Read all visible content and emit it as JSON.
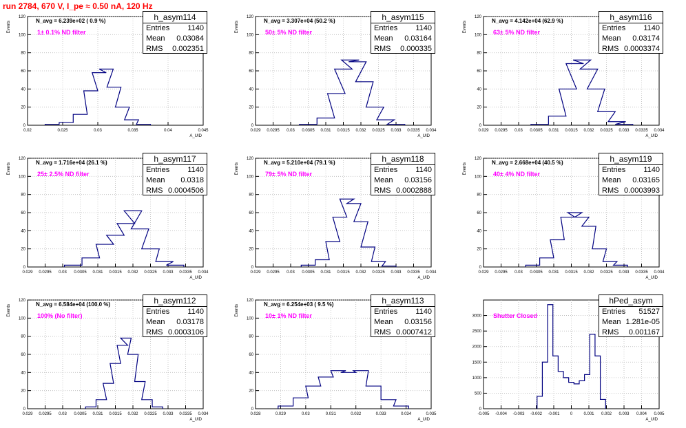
{
  "page_title": "run 2784,   670 V, I_pe ≈ 0.50 nA, 120 Hz",
  "colors": {
    "histogram": "#000080",
    "annotation": "#ff00ff",
    "title": "#ff0000",
    "grid": "#bbbbbb"
  },
  "stat_labels": {
    "entries": "Entries",
    "mean": "Mean",
    "rms": "RMS"
  },
  "chart_data": [
    {
      "type": "histogram",
      "name": "h_asym114",
      "entries": "1140",
      "mean": "0.03084",
      "rms": "0.002351",
      "navg": "N_avg = 6.239e+02 ( 0.9 %)",
      "filter": "1± 0.1% ND filter",
      "ylabel": "Events",
      "xlabel": "A_UID",
      "ylim": [
        0,
        120
      ],
      "yticks": [
        "0",
        "20",
        "40",
        "60",
        "80",
        "100",
        "120"
      ],
      "xticks": [
        "0.02",
        "0.025",
        "0.03",
        "0.035",
        "0.04",
        "0.045"
      ],
      "xlim": [
        0.02,
        0.045
      ],
      "x": [
        0.0235,
        0.0255,
        0.0275,
        0.029,
        0.0302,
        0.0312,
        0.0323,
        0.0335,
        0.0348,
        0.0365
      ],
      "values": [
        1,
        3,
        12,
        38,
        58,
        62,
        42,
        20,
        6,
        1
      ],
      "grid": true
    },
    {
      "type": "histogram",
      "name": "h_asym115",
      "entries": "1140",
      "mean": "0.03164",
      "rms": "0.000335",
      "navg": "N_avg = 3.307e+04 (50.2 %)",
      "filter": "50± 5% ND filter",
      "ylabel": "Events",
      "xlabel": "A_UID",
      "ylim": [
        0,
        120
      ],
      "yticks": [
        "0",
        "20",
        "40",
        "60",
        "80",
        "100",
        "120"
      ],
      "xticks": [
        "0.029",
        "0.0295",
        "0.03",
        "0.0305",
        "0.031",
        "0.0315",
        "0.032",
        "0.0325",
        "0.033",
        "0.0335",
        "0.034"
      ],
      "xlim": [
        0.029,
        0.034
      ],
      "x": [
        0.0305,
        0.031,
        0.0313,
        0.0315,
        0.0317,
        0.0319,
        0.0321,
        0.0324,
        0.0327,
        0.033
      ],
      "values": [
        1,
        8,
        35,
        62,
        72,
        70,
        48,
        20,
        6,
        1
      ],
      "grid": true
    },
    {
      "type": "histogram",
      "name": "h_asym116",
      "entries": "1140",
      "mean": "0.03174",
      "rms": "0.0003374",
      "navg": "N_avg = 4.142e+04 (62.9 %)",
      "filter": "63± 5% ND filter",
      "ylabel": "Events",
      "xlabel": "A_UID",
      "ylim": [
        0,
        120
      ],
      "yticks": [
        "0",
        "20",
        "40",
        "60",
        "80",
        "100",
        "120"
      ],
      "xticks": [
        "0.029",
        "0.0295",
        "0.03",
        "0.0305",
        "0.031",
        "0.0315",
        "0.032",
        "0.0325",
        "0.033",
        "0.0335",
        "0.034"
      ],
      "xlim": [
        0.029,
        0.034
      ],
      "x": [
        0.0306,
        0.0311,
        0.0314,
        0.0316,
        0.0318,
        0.032,
        0.0322,
        0.0325,
        0.0328,
        0.033
      ],
      "values": [
        1,
        10,
        40,
        68,
        72,
        62,
        40,
        15,
        4,
        1
      ],
      "grid": true
    },
    {
      "type": "histogram",
      "name": "h_asym117",
      "entries": "1140",
      "mean": "0.0318",
      "rms": "0.0004506",
      "navg": "N_avg = 1.716e+04 (26.1 %)",
      "filter": "25± 2.5% ND filter",
      "ylabel": "Events",
      "xlabel": "A_UID",
      "ylim": [
        0,
        120
      ],
      "yticks": [
        "0",
        "20",
        "40",
        "60",
        "80",
        "100",
        "120"
      ],
      "xticks": [
        "0.029",
        "0.0295",
        "0.03",
        "0.0305",
        "0.031",
        "0.0315",
        "0.032",
        "0.0325",
        "0.033",
        "0.0335",
        "0.034"
      ],
      "xlim": [
        0.029,
        0.034
      ],
      "x": [
        0.0303,
        0.0308,
        0.0312,
        0.0315,
        0.0318,
        0.032,
        0.0322,
        0.0325,
        0.0329,
        0.0332
      ],
      "values": [
        2,
        10,
        25,
        35,
        48,
        62,
        42,
        20,
        6,
        2
      ],
      "grid": true
    },
    {
      "type": "histogram",
      "name": "h_asym118",
      "entries": "1140",
      "mean": "0.03156",
      "rms": "0.0002888",
      "navg": "N_avg = 5.210e+04 (79.1 %)",
      "filter": "79± 5% ND filter",
      "ylabel": "Events",
      "xlabel": "A_UID",
      "ylim": [
        0,
        120
      ],
      "yticks": [
        "0",
        "20",
        "40",
        "60",
        "80",
        "100",
        "120"
      ],
      "xticks": [
        "0.029",
        "0.0295",
        "0.03",
        "0.0305",
        "0.031",
        "0.0315",
        "0.032",
        "0.0325",
        "0.033",
        "0.0335",
        "0.034"
      ],
      "xlim": [
        0.029,
        0.034
      ],
      "x": [
        0.0305,
        0.0309,
        0.0312,
        0.0314,
        0.0316,
        0.0318,
        0.032,
        0.0322,
        0.0325,
        0.0328
      ],
      "values": [
        2,
        8,
        28,
        55,
        75,
        70,
        50,
        22,
        6,
        1
      ],
      "grid": true
    },
    {
      "type": "histogram",
      "name": "h_asym119",
      "entries": "1140",
      "mean": "0.03165",
      "rms": "0.0003993",
      "navg": "N_avg = 2.668e+04 (40.5 %)",
      "filter": "40± 4% ND filter",
      "ylabel": "Events",
      "xlabel": "A_UID",
      "ylim": [
        0,
        120
      ],
      "yticks": [
        "0",
        "20",
        "40",
        "60",
        "80",
        "100",
        "120"
      ],
      "xticks": [
        "0.029",
        "0.0295",
        "0.03",
        "0.0305",
        "0.031",
        "0.0315",
        "0.032",
        "0.0325",
        "0.033",
        "0.0335",
        "0.034"
      ],
      "xlim": [
        0.029,
        0.034
      ],
      "x": [
        0.0304,
        0.0308,
        0.0311,
        0.0314,
        0.0316,
        0.0318,
        0.032,
        0.0323,
        0.0326,
        0.0329
      ],
      "values": [
        2,
        10,
        30,
        55,
        60,
        55,
        45,
        20,
        6,
        2
      ],
      "grid": true
    },
    {
      "type": "histogram",
      "name": "h_asym112",
      "entries": "1140",
      "mean": "0.03178",
      "rms": "0.0003106",
      "navg": "N_avg = 6.584e+04 (100.0 %)",
      "filter": "100% (No filter)",
      "ylabel": "Events",
      "xlabel": "A_UID",
      "ylim": [
        0,
        120
      ],
      "yticks": [
        "0",
        "20",
        "40",
        "60",
        "80",
        "100",
        "120"
      ],
      "xticks": [
        "0.029",
        "0.0295",
        "0.03",
        "0.0305",
        "0.031",
        "0.0315",
        "0.032",
        "0.0325",
        "0.033",
        "0.0335",
        "0.034"
      ],
      "xlim": [
        0.029,
        0.034
      ],
      "x": [
        0.0308,
        0.0311,
        0.0313,
        0.0315,
        0.0317,
        0.0318,
        0.032,
        0.0322,
        0.0324,
        0.0327
      ],
      "values": [
        2,
        10,
        28,
        50,
        70,
        78,
        60,
        30,
        10,
        2
      ],
      "grid": true
    },
    {
      "type": "histogram",
      "name": "h_asym113",
      "entries": "1140",
      "mean": "0.03156",
      "rms": "0.0007412",
      "navg": "N_avg = 6.254e+03 ( 9.5 %)",
      "filter": "10± 1% ND filter",
      "ylabel": "Events",
      "xlabel": "A_UID",
      "ylim": [
        0,
        120
      ],
      "yticks": [
        "0",
        "20",
        "40",
        "60",
        "80",
        "100",
        "120"
      ],
      "xticks": [
        "0.028",
        "0.029",
        "0.03",
        "0.031",
        "0.032",
        "0.033",
        "0.034",
        "0.035"
      ],
      "xlim": [
        0.028,
        0.035
      ],
      "x": [
        0.0292,
        0.0298,
        0.0303,
        0.0308,
        0.0313,
        0.0317,
        0.0322,
        0.0327,
        0.0333,
        0.0338
      ],
      "values": [
        3,
        12,
        25,
        35,
        42,
        40,
        42,
        25,
        10,
        3
      ],
      "grid": true
    },
    {
      "type": "histogram",
      "name": "hPed_asym",
      "entries": "51527",
      "mean": "1.281e-05",
      "rms": "0.001167",
      "navg": "",
      "filter": "Shutter Closed",
      "ylabel": "",
      "xlabel": "A_UID",
      "ylim": [
        0,
        3500
      ],
      "yticks": [
        "0",
        "500",
        "1000",
        "1500",
        "2000",
        "2500",
        "3000"
      ],
      "xticks": [
        "-0.005",
        "-0.004",
        "-0.003",
        "-0.002",
        "-0.001",
        "0",
        "0.001",
        "0.002",
        "0.003",
        "0.004",
        "0.005"
      ],
      "xlim": [
        -0.005,
        0.005
      ],
      "x": [
        -0.0018,
        -0.0015,
        -0.0012,
        -0.0009,
        -0.0006,
        -0.0003,
        0.0,
        0.0003,
        0.0006,
        0.0009,
        0.0012,
        0.0015,
        0.0018
      ],
      "values": [
        400,
        1500,
        3350,
        1700,
        1200,
        1000,
        850,
        800,
        900,
        1100,
        2400,
        1700,
        300
      ],
      "grid": true
    }
  ]
}
